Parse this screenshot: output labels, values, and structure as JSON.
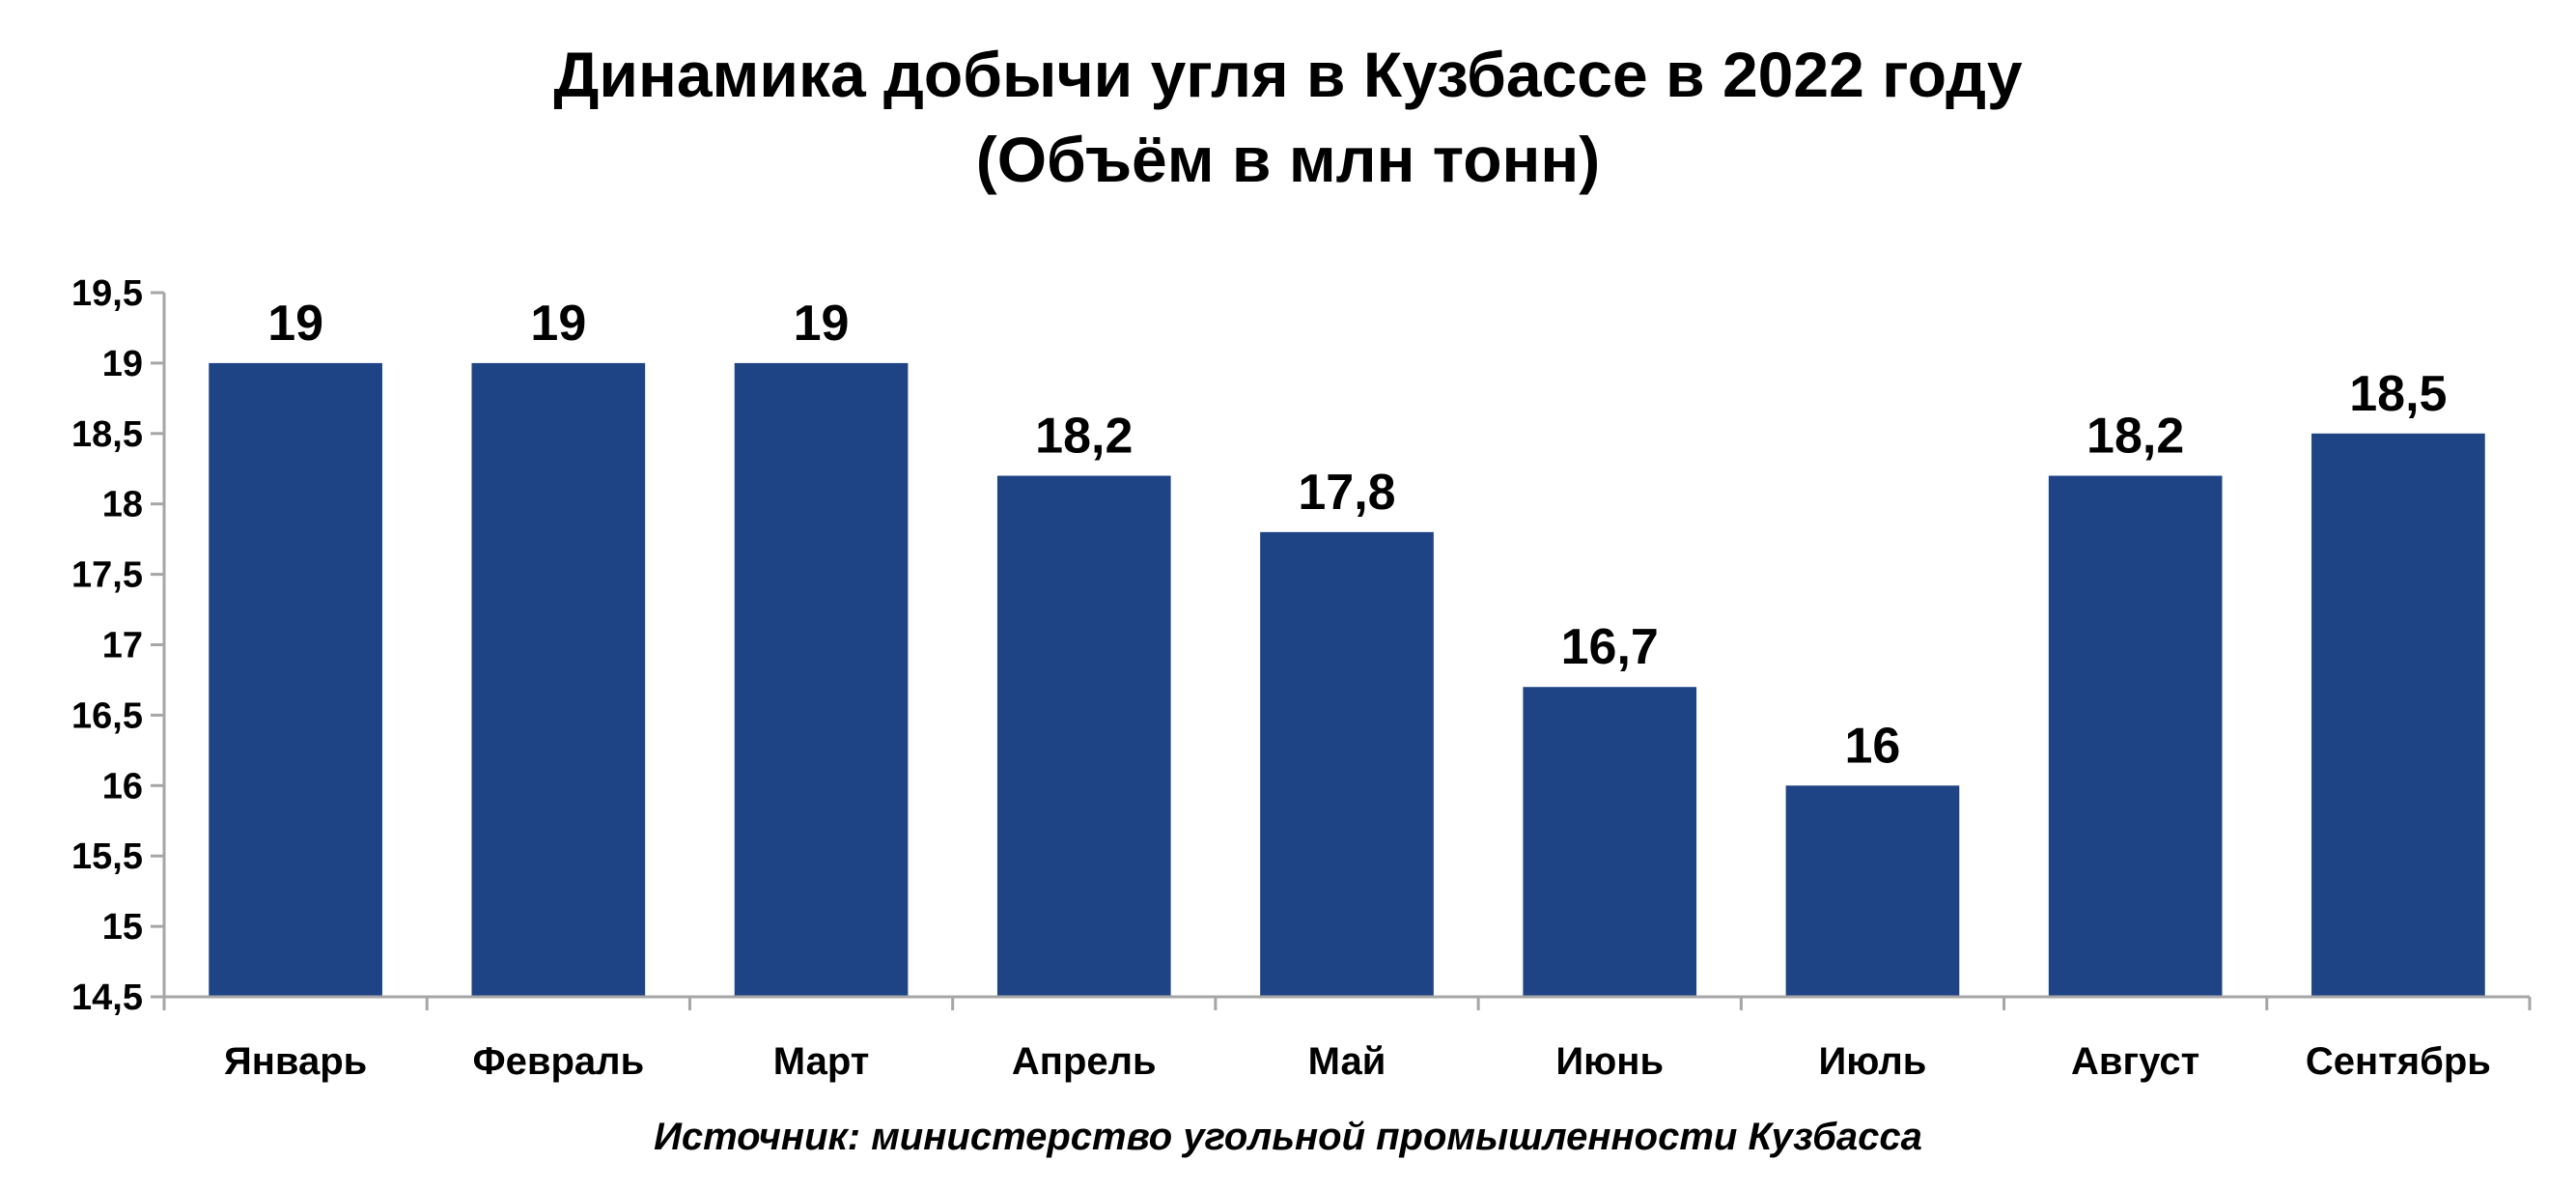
{
  "chart_data": {
    "type": "bar",
    "title": "Динамика добычи угля в Кузбассе в 2022 году",
    "subtitle": "(Объём в млн тонн)",
    "categories": [
      "Январь",
      "Февраль",
      "Март",
      "Апрель",
      "Май",
      "Июнь",
      "Июль",
      "Август",
      "Сентябрь"
    ],
    "values": [
      19,
      19,
      19,
      18.2,
      17.8,
      16.7,
      16,
      18.2,
      18.5
    ],
    "value_labels": [
      "19",
      "19",
      "19",
      "18,2",
      "17,8",
      "16,7",
      "16",
      "18,2",
      "18,5"
    ],
    "ylim": [
      14.5,
      19.5
    ],
    "yticks": [
      14.5,
      15,
      15.5,
      16,
      16.5,
      17,
      17.5,
      18,
      18.5,
      19,
      19.5
    ],
    "ytick_labels": [
      "14,5",
      "15",
      "15,5",
      "16",
      "16,5",
      "17",
      "17,5",
      "18",
      "18,5",
      "19",
      "19,5"
    ],
    "xlabel": "",
    "ylabel": "",
    "grid": false,
    "legend": "none",
    "bar_color": "#1f4485",
    "axis_color": "#a6a6a6",
    "source": "Источник: министерство угольной промышленности Кузбасса"
  }
}
